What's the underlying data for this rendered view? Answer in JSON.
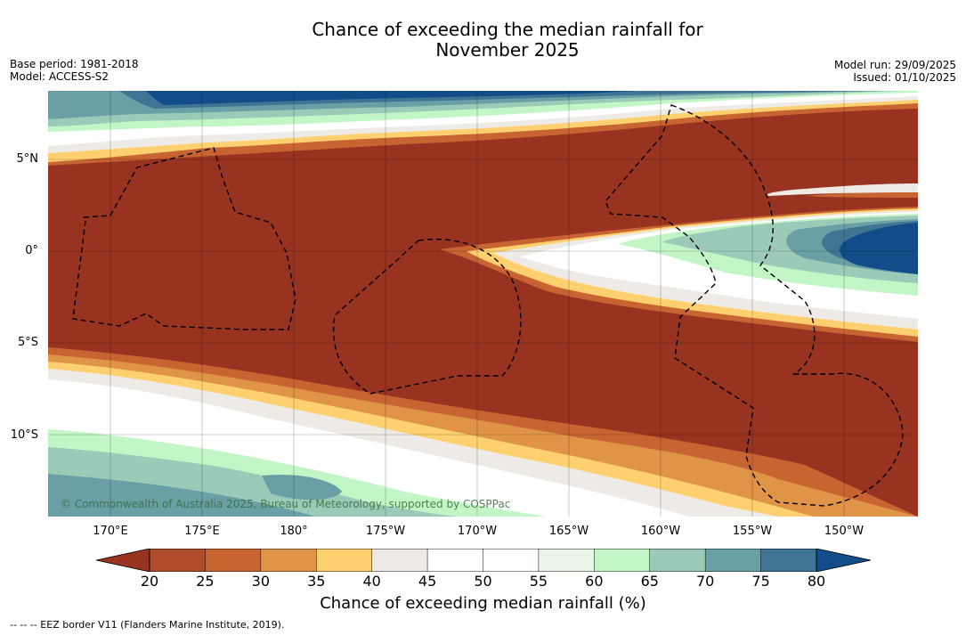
{
  "title_line1": "Chance of exceeding the median rainfall for",
  "title_line2": "November 2025",
  "base_period": "Base period: 1981-2018",
  "model": "Model: ACCESS-S2",
  "model_run": "Model run: 29/09/2025",
  "issued": "Issued: 01/10/2025",
  "copyright": "© Commonwealth of Australia 2025, Bureau of Meteorology, supported by COSPPac",
  "footnote": "--  --  -- EEZ border V11 (Flanders Marine Institute, 2019).",
  "map": {
    "lat_labels": [
      "5°N",
      "0°",
      "5°S",
      "10°S"
    ],
    "lon_labels": [
      "170°E",
      "175°E",
      "180°",
      "175°W",
      "170°W",
      "165°W",
      "160°W",
      "155°W",
      "150°W"
    ]
  },
  "colorbar": {
    "label": "Chance of exceeding median rainfall (%)",
    "ticks": [
      "20",
      "25",
      "30",
      "35",
      "40",
      "45",
      "50",
      "55",
      "60",
      "65",
      "70",
      "75",
      "80"
    ],
    "colors": [
      "#973320",
      "#b04b2c",
      "#c86432",
      "#df9447",
      "#fed06f",
      "#eeebe6",
      "#ffffff",
      "#ffffff",
      "#e9f5e7",
      "#c3f6c6",
      "#9bcbb8",
      "#6b9fa6",
      "#3f7494",
      "#124d8a"
    ]
  }
}
